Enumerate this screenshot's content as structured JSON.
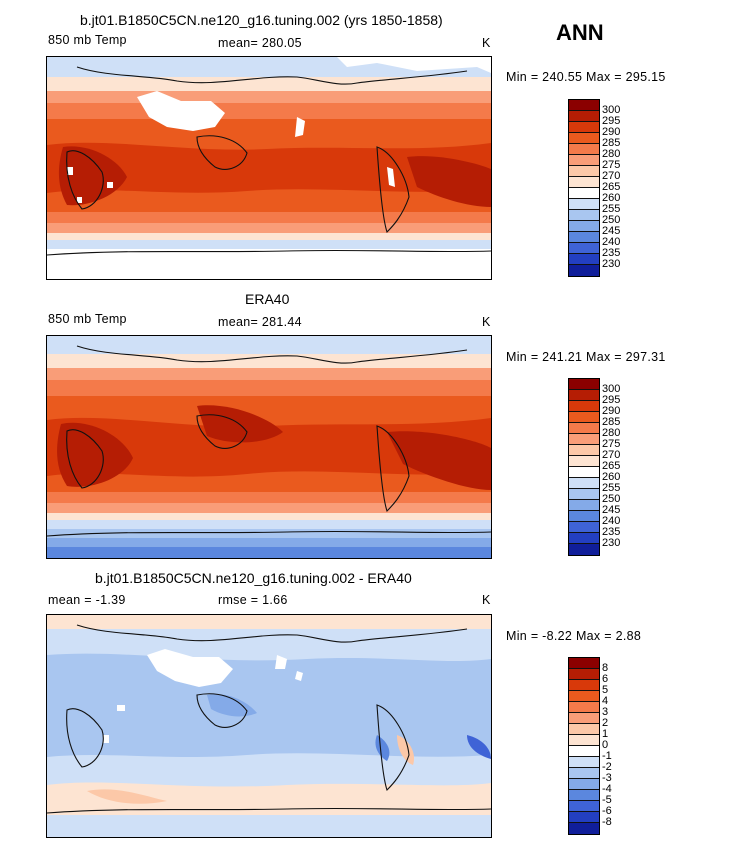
{
  "season": "ANN",
  "panels": [
    {
      "title": "b.jt01.B1850C5CN.ne120_g16.tuning.002 (yrs 1850-1858)",
      "left_label": "850 mb Temp",
      "stat_label": "mean= 280.05",
      "units": "K",
      "minmax": "Min = 240.55 Max = 295.15",
      "colorbar_labels": [
        "300",
        "295",
        "290",
        "285",
        "280",
        "275",
        "270",
        "265",
        "260",
        "255",
        "250",
        "245",
        "240",
        "235",
        "230"
      ],
      "colorbar_colors": [
        "#8b0000",
        "#b51d04",
        "#d8390a",
        "#ea5a1e",
        "#f47a4a",
        "#f99d78",
        "#fcc8a8",
        "#fde4d2",
        "#ffffff",
        "#cfe0f7",
        "#a9c6f0",
        "#84aae8",
        "#5b87de",
        "#3f63d6",
        "#233fc1",
        "#101e9a"
      ]
    },
    {
      "title": "ERA40",
      "left_label": "850 mb Temp",
      "stat_label": "mean= 281.44",
      "units": "K",
      "minmax": "Min = 241.21 Max = 297.31",
      "colorbar_labels": [
        "300",
        "295",
        "290",
        "285",
        "280",
        "275",
        "270",
        "265",
        "260",
        "255",
        "250",
        "245",
        "240",
        "235",
        "230"
      ],
      "colorbar_colors": [
        "#8b0000",
        "#b51d04",
        "#d8390a",
        "#ea5a1e",
        "#f47a4a",
        "#f99d78",
        "#fcc8a8",
        "#fde4d2",
        "#ffffff",
        "#cfe0f7",
        "#a9c6f0",
        "#84aae8",
        "#5b87de",
        "#3f63d6",
        "#233fc1",
        "#101e9a"
      ]
    },
    {
      "title": "b.jt01.B1850C5CN.ne120_g16.tuning.002 - ERA40",
      "left_label": "mean =   -1.39",
      "stat_label": "rmse =    1.66",
      "units": "K",
      "minmax": "Min =  -8.22 Max =    2.88",
      "colorbar_labels": [
        "8",
        "6",
        "5",
        "4",
        "3",
        "2",
        "1",
        "0",
        "-1",
        "-2",
        "-3",
        "-4",
        "-5",
        "-6",
        "-8"
      ],
      "colorbar_colors": [
        "#8b0000",
        "#b51d04",
        "#d8390a",
        "#ea5a1e",
        "#f47a4a",
        "#f99d78",
        "#fcc8a8",
        "#fde4d2",
        "#ffffff",
        "#cfe0f7",
        "#a9c6f0",
        "#84aae8",
        "#5b87de",
        "#3f63d6",
        "#233fc1",
        "#101e9a"
      ]
    }
  ]
}
